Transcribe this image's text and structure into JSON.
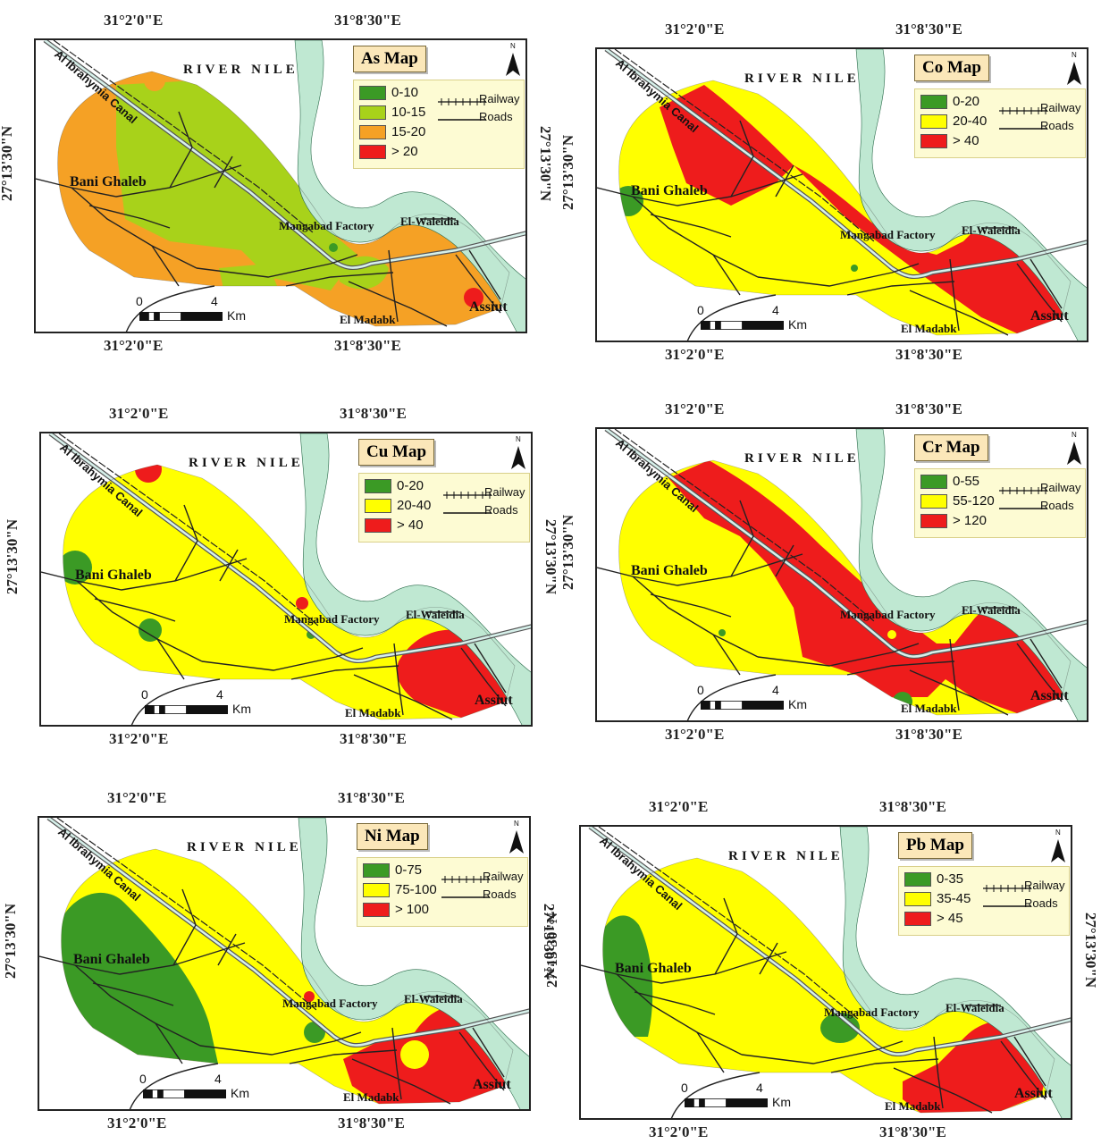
{
  "coords": {
    "lon_left": "31°2'0\"E",
    "lon_right": "31°8'30\"E",
    "lat": "27°13'30\"N"
  },
  "common": {
    "river": "RIVER NILE",
    "canal": "Al Ibrahymia Canal",
    "places": {
      "bani_ghaleb": "Bani Ghaleb",
      "mangabad": "Mangabad Factory",
      "el_waleidia": "El-Waleidia",
      "el_madabk": "El Madabk",
      "assiut": "Assiut"
    },
    "railway": "Railway",
    "roads": "Roads",
    "scale_zero": "0",
    "scale_four": "4",
    "scale_unit": "Km",
    "north": "N"
  },
  "colors": {
    "green": "#3b9a25",
    "lightgreen": "#a8d21a",
    "orange": "#f5a125",
    "red": "#ee1c1c",
    "yellow": "#ffff00",
    "river": "#bfe8d2",
    "legend_bg": "#fdfbd3",
    "title_bg": "#fbe7b9"
  },
  "maps": [
    {
      "id": "as",
      "title": "As Map",
      "classes": [
        {
          "label": "0-10",
          "color": "#3b9a25"
        },
        {
          "label": "10-15",
          "color": "#a8d21a"
        },
        {
          "label": "15-20",
          "color": "#f5a125"
        },
        {
          "label": "> 20",
          "color": "#ee1c1c"
        }
      ]
    },
    {
      "id": "co",
      "title": "Co Map",
      "classes": [
        {
          "label": "0-20",
          "color": "#3b9a25"
        },
        {
          "label": "20-40",
          "color": "#ffff00"
        },
        {
          "label": "> 40",
          "color": "#ee1c1c"
        }
      ]
    },
    {
      "id": "cu",
      "title": "Cu Map",
      "classes": [
        {
          "label": "0-20",
          "color": "#3b9a25"
        },
        {
          "label": "20-40",
          "color": "#ffff00"
        },
        {
          "label": "> 40",
          "color": "#ee1c1c"
        }
      ]
    },
    {
      "id": "cr",
      "title": "Cr Map",
      "classes": [
        {
          "label": "0-55",
          "color": "#3b9a25"
        },
        {
          "label": "55-120",
          "color": "#ffff00"
        },
        {
          "label": "> 120",
          "color": "#ee1c1c"
        }
      ]
    },
    {
      "id": "ni",
      "title": "Ni Map",
      "classes": [
        {
          "label": "0-75",
          "color": "#3b9a25"
        },
        {
          "label": "75-100",
          "color": "#ffff00"
        },
        {
          "label": "> 100",
          "color": "#ee1c1c"
        }
      ]
    },
    {
      "id": "pb",
      "title": "Pb Map",
      "classes": [
        {
          "label": "0-35",
          "color": "#3b9a25"
        },
        {
          "label": "35-45",
          "color": "#ffff00"
        },
        {
          "label": "> 45",
          "color": "#ee1c1c"
        }
      ]
    }
  ]
}
